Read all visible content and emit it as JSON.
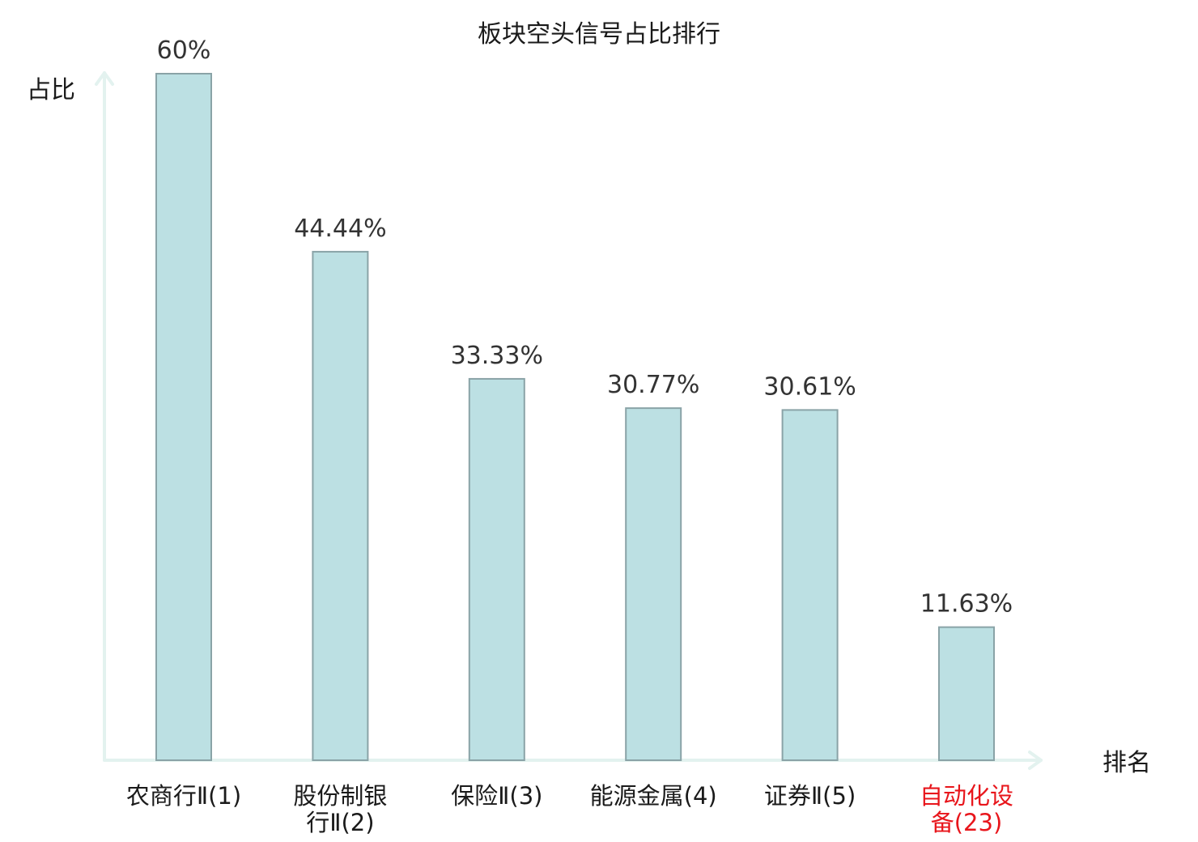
{
  "chart_data": {
    "type": "bar",
    "title": "板块空头信号占比排行",
    "ylabel": "占比",
    "xlabel": "排名",
    "ylim": [
      0,
      60
    ],
    "grid": false,
    "legend": "none",
    "categories": [
      [
        "农商行Ⅱ(1)"
      ],
      [
        "股份制银",
        "行Ⅱ(2)"
      ],
      [
        "保险Ⅱ(3)"
      ],
      [
        "能源金属(4)"
      ],
      [
        "证券Ⅱ(5)"
      ],
      [
        "自动化设",
        "备(23)"
      ]
    ],
    "values": [
      60,
      44.44,
      33.33,
      30.77,
      30.61,
      11.63
    ],
    "value_labels": [
      "60%",
      "44.44%",
      "33.33%",
      "30.77%",
      "30.61%",
      "11.63%"
    ],
    "highlight_index": 5,
    "colors": {
      "bar_fill": "#bce0e3",
      "bar_stroke": "#8aa3a7",
      "axis": "#e3f2ef",
      "text": "#1a1a1a",
      "value_text": "#333333",
      "highlight": "#e8151b"
    }
  }
}
